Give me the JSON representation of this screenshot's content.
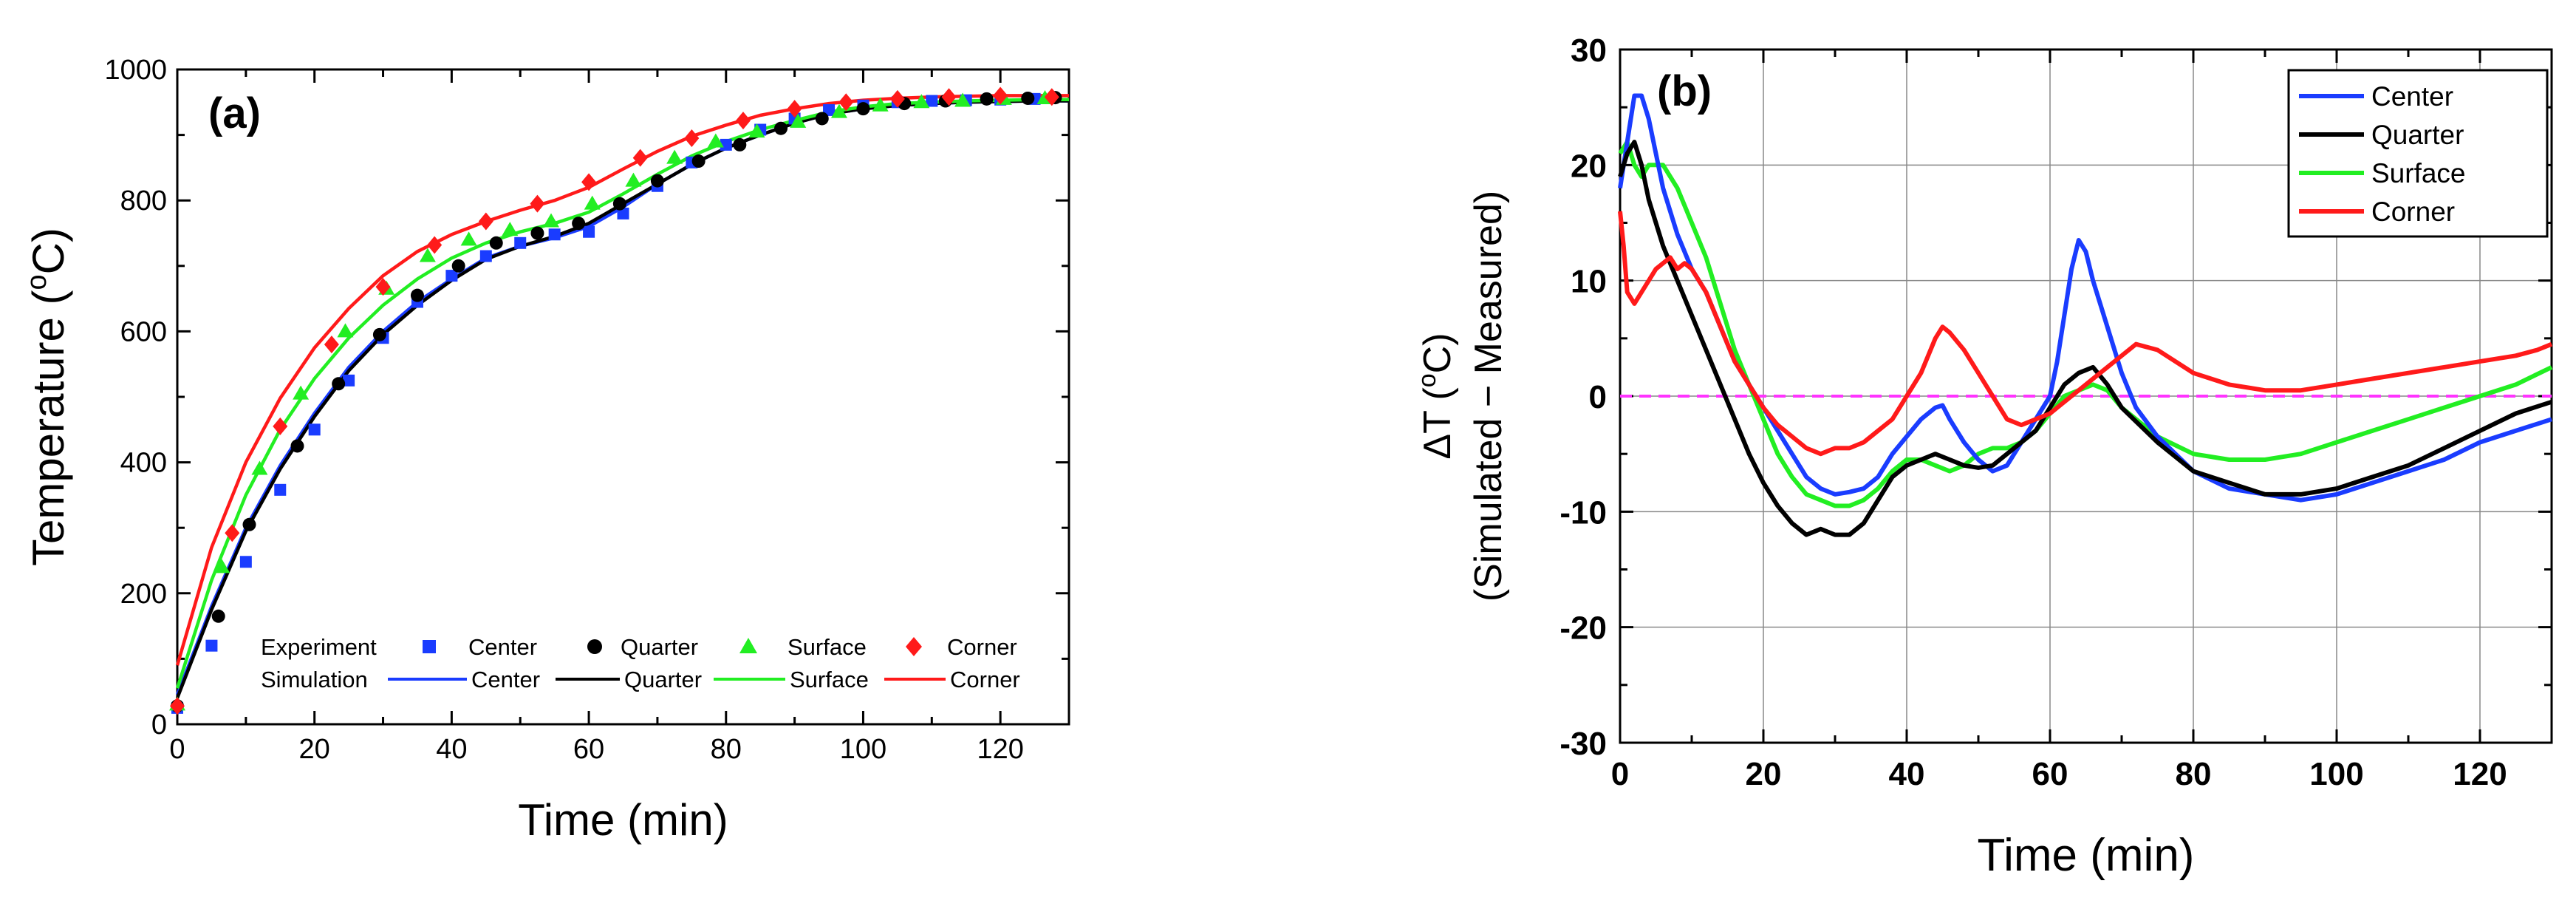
{
  "chart_data": [
    {
      "type": "line",
      "panel_label": "(a)",
      "title": "",
      "xlabel": "Time (min)",
      "ylabel": "Temperature (",
      "ylabel_sup": "o",
      "ylabel_tail": "C)",
      "xlim": [
        0,
        130
      ],
      "ylim": [
        0,
        1000
      ],
      "xticks": [
        0,
        20,
        40,
        60,
        80,
        100,
        120
      ],
      "yticks": [
        0,
        200,
        400,
        600,
        800,
        1000
      ],
      "grid": false,
      "legend_position": "bottom-center",
      "legend": {
        "experiment_label": "Experiment",
        "simulation_label": "Simulation",
        "series_names": [
          "Center",
          "Quarter",
          "Surface",
          "Corner"
        ]
      },
      "experiment": [
        {
          "name": "Center",
          "color": "#1a3cff",
          "marker": "square",
          "x": [
            0,
            5,
            10,
            15,
            20,
            25,
            30,
            35,
            40,
            45,
            50,
            55,
            60,
            65,
            70,
            75,
            80,
            85,
            90,
            95,
            100,
            105,
            110,
            115,
            120,
            125
          ],
          "y": [
            25,
            120,
            248,
            358,
            450,
            525,
            590,
            645,
            685,
            715,
            735,
            748,
            752,
            780,
            822,
            858,
            885,
            908,
            925,
            938,
            945,
            950,
            952,
            953,
            954,
            955
          ]
        },
        {
          "name": "Quarter",
          "color": "#000000",
          "marker": "circle",
          "x": [
            0,
            6,
            10.5,
            17.5,
            23.5,
            29.5,
            35,
            41,
            46.5,
            52.5,
            58.5,
            64.5,
            70,
            76,
            82,
            88,
            94,
            100,
            106,
            112,
            118,
            124,
            128
          ],
          "y": [
            28,
            165,
            305,
            425,
            520,
            595,
            655,
            700,
            735,
            750,
            765,
            795,
            830,
            860,
            885,
            910,
            925,
            940,
            948,
            952,
            955,
            956,
            957
          ]
        },
        {
          "name": "Surface",
          "color": "#22ee22",
          "marker": "triangle",
          "x": [
            0,
            6.5,
            12,
            18,
            24.5,
            30.5,
            36.5,
            42.5,
            48.5,
            54.5,
            60.5,
            66.5,
            72.5,
            78.5,
            84.5,
            90.5,
            96.5,
            102.5,
            108.5,
            114.5,
            120.5,
            126.5
          ],
          "y": [
            30,
            240,
            390,
            505,
            600,
            665,
            715,
            740,
            755,
            768,
            795,
            830,
            865,
            890,
            905,
            920,
            935,
            945,
            950,
            952,
            955,
            956
          ]
        },
        {
          "name": "Corner",
          "color": "#ff1a1a",
          "marker": "diamond",
          "x": [
            0,
            8,
            15,
            22.5,
            30,
            37.5,
            45,
            52.5,
            60,
            67.5,
            75,
            82.5,
            90,
            97.5,
            105,
            112.5,
            120,
            127.5
          ],
          "y": [
            28,
            292,
            455,
            580,
            668,
            732,
            768,
            795,
            828,
            865,
            895,
            922,
            940,
            950,
            955,
            958,
            960,
            958
          ]
        }
      ],
      "simulation": [
        {
          "name": "Center",
          "color": "#1a3cff",
          "x": [
            0,
            5,
            10,
            15,
            20,
            25,
            30,
            35,
            40,
            45,
            50,
            55,
            60,
            65,
            70,
            75,
            80,
            85,
            90,
            95,
            100,
            105,
            110,
            115,
            120,
            125,
            130
          ],
          "y": [
            45,
            180,
            300,
            395,
            475,
            545,
            600,
            645,
            680,
            712,
            730,
            743,
            760,
            790,
            825,
            855,
            880,
            900,
            918,
            932,
            940,
            945,
            948,
            950,
            951,
            952,
            952
          ]
        },
        {
          "name": "Quarter",
          "color": "#000000",
          "x": [
            0,
            5,
            10,
            15,
            20,
            25,
            30,
            35,
            40,
            45,
            50,
            55,
            60,
            65,
            70,
            75,
            80,
            85,
            90,
            95,
            100,
            105,
            110,
            115,
            120,
            125,
            130
          ],
          "y": [
            40,
            175,
            295,
            390,
            470,
            540,
            595,
            640,
            678,
            710,
            730,
            745,
            765,
            795,
            825,
            855,
            880,
            900,
            918,
            932,
            940,
            945,
            948,
            950,
            951,
            952,
            952
          ]
        },
        {
          "name": "Surface",
          "color": "#22ee22",
          "x": [
            0,
            5,
            10,
            15,
            20,
            25,
            30,
            35,
            40,
            45,
            50,
            55,
            60,
            65,
            70,
            75,
            80,
            85,
            90,
            95,
            100,
            105,
            110,
            115,
            120,
            125,
            130
          ],
          "y": [
            55,
            220,
            350,
            450,
            528,
            590,
            640,
            680,
            712,
            735,
            752,
            765,
            782,
            810,
            840,
            868,
            890,
            908,
            922,
            935,
            943,
            948,
            950,
            952,
            953,
            954,
            954
          ]
        },
        {
          "name": "Corner",
          "color": "#ff1a1a",
          "x": [
            0,
            5,
            10,
            15,
            20,
            25,
            30,
            35,
            40,
            45,
            50,
            55,
            60,
            65,
            70,
            75,
            80,
            85,
            90,
            95,
            100,
            105,
            110,
            115,
            120,
            125,
            130
          ],
          "y": [
            90,
            270,
            400,
            498,
            575,
            635,
            685,
            722,
            748,
            768,
            785,
            800,
            820,
            848,
            875,
            898,
            915,
            930,
            940,
            948,
            953,
            956,
            958,
            959,
            960,
            960,
            960
          ]
        }
      ]
    },
    {
      "type": "line",
      "panel_label": "(b)",
      "title": "",
      "xlabel": "Time (min)",
      "ylabel_line1": "ΔT (",
      "ylabel_sup": "o",
      "ylabel_line1_tail": "C)",
      "ylabel_line2": "(Simulated − Measured)",
      "xlim": [
        0,
        130
      ],
      "ylim": [
        -30,
        30
      ],
      "xticks": [
        0,
        20,
        40,
        60,
        80,
        100,
        120
      ],
      "yticks": [
        -30,
        -20,
        -10,
        0,
        10,
        20,
        30
      ],
      "grid": true,
      "legend_position": "top-right",
      "reference_line": {
        "y": 0,
        "color": "#ff33ff",
        "style": "dashed"
      },
      "series": [
        {
          "name": "Center",
          "color": "#1a3cff",
          "x": [
            0,
            1,
            2,
            3,
            4,
            6,
            8,
            10,
            12,
            14,
            16,
            18,
            20,
            22,
            24,
            26,
            28,
            30,
            32,
            34,
            36,
            38,
            40,
            42,
            44,
            45,
            46,
            48,
            50,
            52,
            54,
            56,
            58,
            60,
            61,
            62,
            63,
            64,
            65,
            66,
            68,
            70,
            72,
            75,
            80,
            85,
            90,
            95,
            100,
            105,
            110,
            115,
            120,
            125,
            130
          ],
          "y": [
            18,
            22,
            26,
            26,
            24,
            18,
            14,
            11,
            9,
            6,
            3,
            1,
            -1,
            -3,
            -5,
            -7,
            -8,
            -8.5,
            -8.3,
            -8,
            -7,
            -5,
            -3.5,
            -2,
            -1,
            -0.8,
            -2,
            -4,
            -5.5,
            -6.5,
            -6,
            -4,
            -2,
            0,
            3,
            7,
            11,
            13.5,
            12.5,
            10,
            6,
            2,
            -1,
            -3.5,
            -6.5,
            -8,
            -8.5,
            -9,
            -8.5,
            -7.5,
            -6.5,
            -5.5,
            -4,
            -3,
            -2
          ]
        },
        {
          "name": "Quarter",
          "color": "#000000",
          "x": [
            0,
            1,
            2,
            3,
            4,
            6,
            8,
            10,
            12,
            14,
            16,
            18,
            20,
            22,
            24,
            26,
            28,
            30,
            32,
            34,
            36,
            38,
            40,
            42,
            44,
            46,
            48,
            50,
            52,
            54,
            56,
            58,
            60,
            62,
            64,
            66,
            68,
            70,
            75,
            80,
            85,
            90,
            95,
            100,
            105,
            110,
            115,
            120,
            125,
            130
          ],
          "y": [
            19,
            21,
            22,
            20,
            17,
            13,
            10,
            7,
            4,
            1,
            -2,
            -5,
            -7.5,
            -9.5,
            -11,
            -12,
            -11.5,
            -12,
            -12,
            -11,
            -9,
            -7,
            -6,
            -5.5,
            -5,
            -5.5,
            -6,
            -6.2,
            -6,
            -5,
            -4,
            -3,
            -1,
            1,
            2,
            2.5,
            1,
            -1,
            -4,
            -6.5,
            -7.5,
            -8.5,
            -8.5,
            -8,
            -7,
            -6,
            -4.5,
            -3,
            -1.5,
            -0.5
          ]
        },
        {
          "name": "Surface",
          "color": "#22ee22",
          "x": [
            0,
            1,
            2,
            3,
            4,
            5,
            6,
            8,
            10,
            12,
            14,
            16,
            18,
            20,
            22,
            24,
            26,
            28,
            30,
            32,
            34,
            36,
            38,
            40,
            42,
            44,
            46,
            48,
            50,
            52,
            54,
            56,
            58,
            60,
            62,
            64,
            66,
            68,
            70,
            75,
            80,
            85,
            90,
            95,
            100,
            105,
            110,
            115,
            120,
            125,
            130
          ],
          "y": [
            21,
            22,
            20,
            19,
            20,
            20,
            20,
            18,
            15,
            12,
            8,
            4,
            1,
            -2,
            -5,
            -7,
            -8.5,
            -9,
            -9.5,
            -9.5,
            -9,
            -8,
            -6.5,
            -5.5,
            -5.5,
            -6,
            -6.5,
            -6,
            -5,
            -4.5,
            -4.5,
            -4,
            -3,
            -1.5,
            0,
            0.5,
            1,
            0.5,
            -1,
            -3.5,
            -5,
            -5.5,
            -5.5,
            -5,
            -4,
            -3,
            -2,
            -1,
            0,
            1,
            2.5
          ]
        },
        {
          "name": "Corner",
          "color": "#ff1a1a",
          "x": [
            0,
            0.5,
            1,
            2,
            3,
            4,
            5,
            6,
            7,
            8,
            9,
            10,
            12,
            14,
            16,
            18,
            20,
            22,
            24,
            26,
            28,
            30,
            32,
            34,
            36,
            38,
            40,
            42,
            44,
            45,
            46,
            48,
            50,
            52,
            54,
            56,
            58,
            60,
            62,
            64,
            66,
            68,
            70,
            72,
            75,
            80,
            85,
            90,
            95,
            100,
            105,
            110,
            115,
            120,
            125,
            128,
            130
          ],
          "y": [
            16,
            13,
            9,
            8,
            9,
            10,
            11,
            11.5,
            12,
            11,
            11.5,
            11,
            9,
            6,
            3,
            1,
            -1,
            -2.5,
            -3.5,
            -4.5,
            -5,
            -4.5,
            -4.5,
            -4,
            -3,
            -2,
            0,
            2,
            5,
            6,
            5.5,
            4,
            2,
            0,
            -2,
            -2.5,
            -2,
            -1.5,
            -0.5,
            0.5,
            1.5,
            2.5,
            3.5,
            4.5,
            4,
            2,
            1,
            0.5,
            0.5,
            1,
            1.5,
            2,
            2.5,
            3,
            3.5,
            4,
            4.5
          ]
        }
      ]
    }
  ]
}
